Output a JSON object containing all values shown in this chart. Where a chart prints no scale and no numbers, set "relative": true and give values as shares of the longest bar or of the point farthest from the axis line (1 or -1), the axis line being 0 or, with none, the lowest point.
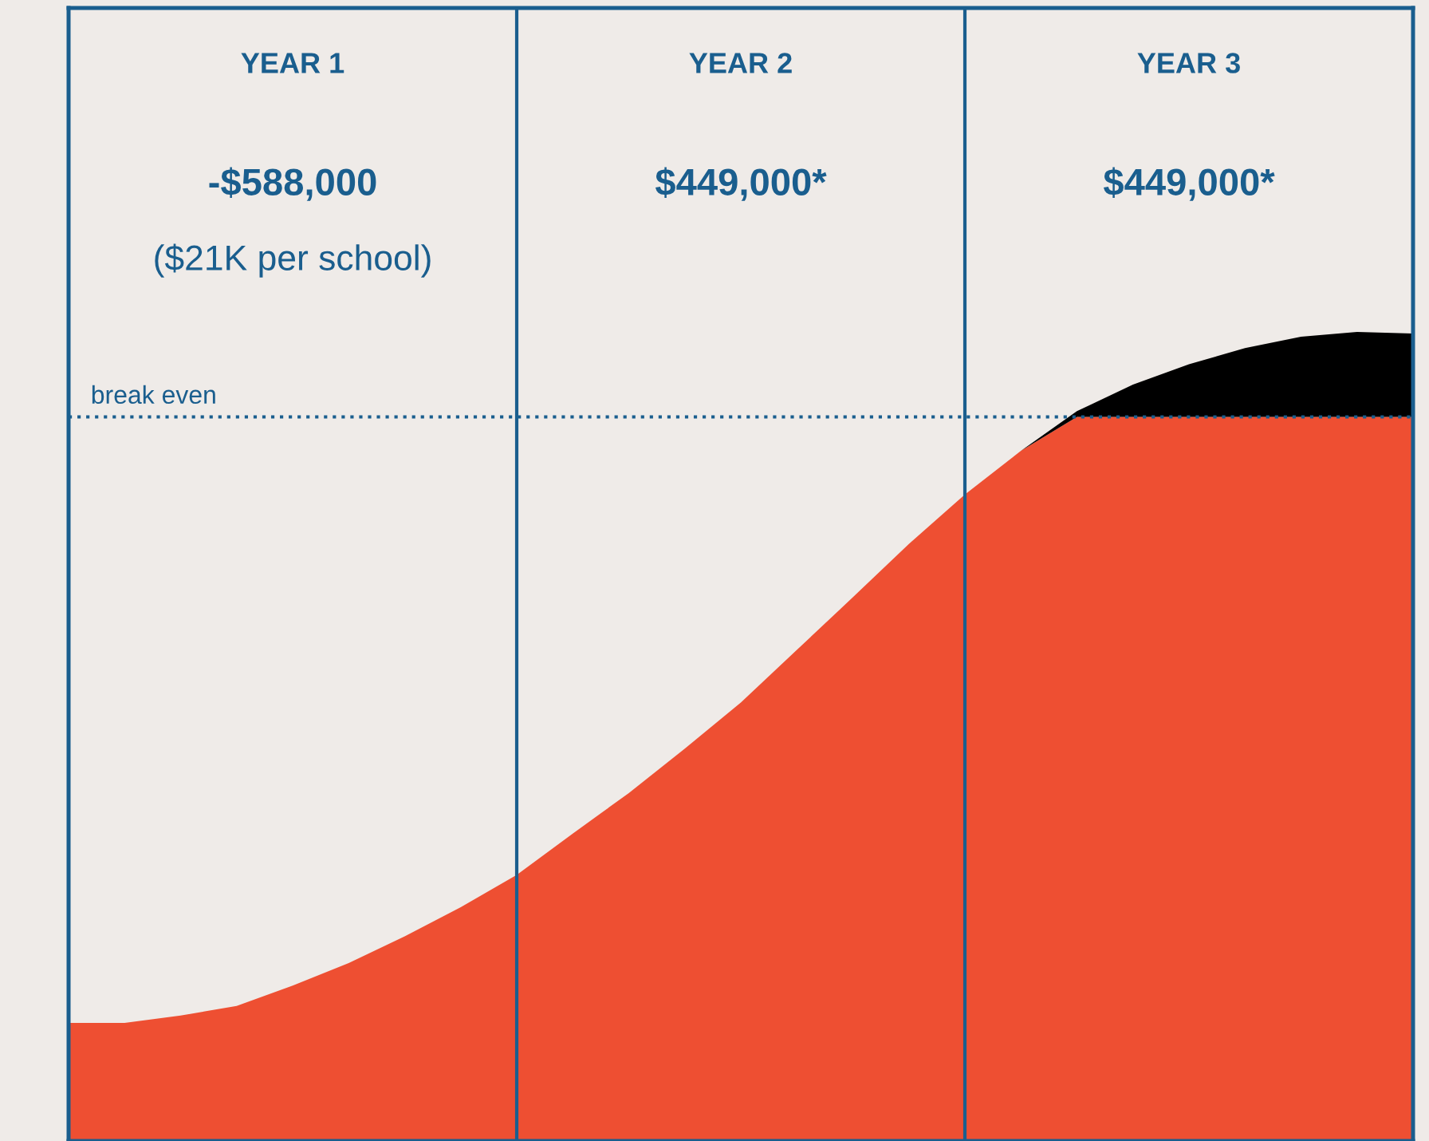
{
  "chart_data": {
    "type": "area",
    "relative": true,
    "stacked": true,
    "categories": [
      null,
      null,
      null,
      null,
      "YEAR 1",
      null,
      null,
      null,
      null,
      null,
      null,
      null,
      "YEAR 2",
      null,
      null,
      null,
      null,
      null,
      null,
      null,
      "YEAR 3",
      null,
      null,
      null,
      null
    ],
    "series": [
      {
        "color": "#ee4f32",
        "values": [
          0.146,
          0.146,
          0.155,
          0.167,
          0.192,
          0.22,
          0.253,
          0.289,
          0.329,
          0.38,
          0.43,
          0.485,
          0.542,
          0.607,
          0.672,
          0.738,
          0.799,
          0.853,
          0.895,
          0.895,
          0.895,
          0.895,
          0.895,
          0.895,
          0.895
        ]
      },
      {
        "color": "#000000",
        "values": [
          0,
          0,
          0,
          0,
          0,
          0,
          0,
          0,
          0,
          0,
          0,
          0,
          0,
          0,
          0,
          0,
          0,
          0,
          0.007,
          0.04,
          0.065,
          0.085,
          0.099,
          0.105,
          0.103
        ]
      }
    ],
    "annotations": [
      "-$588,000",
      "$449,000*",
      "$449,000*",
      "($21K per school)"
    ],
    "ref_lines": [
      {
        "axis": "y",
        "value": 0.895,
        "label": "break even",
        "color": "#1a5e8e",
        "line_style": "dotted"
      }
    ]
  }
}
